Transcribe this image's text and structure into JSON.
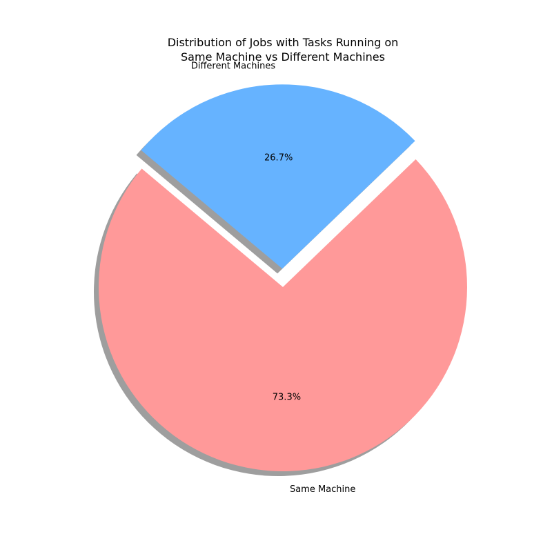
{
  "chart_data": {
    "type": "pie",
    "title_lines": [
      "Distribution of Jobs with Tasks Running on",
      "Same Machine vs Different Machines"
    ],
    "slices": [
      {
        "label": "Same Machine",
        "value": 73.3,
        "pct_text": "73.3%",
        "color": "#ff9999",
        "exploded": false
      },
      {
        "label": "Different Machines",
        "value": 26.7,
        "pct_text": "26.7%",
        "color": "#66b3ff",
        "exploded": true
      }
    ],
    "start_angle_deg": 140,
    "shadow": true,
    "legend": "none"
  }
}
